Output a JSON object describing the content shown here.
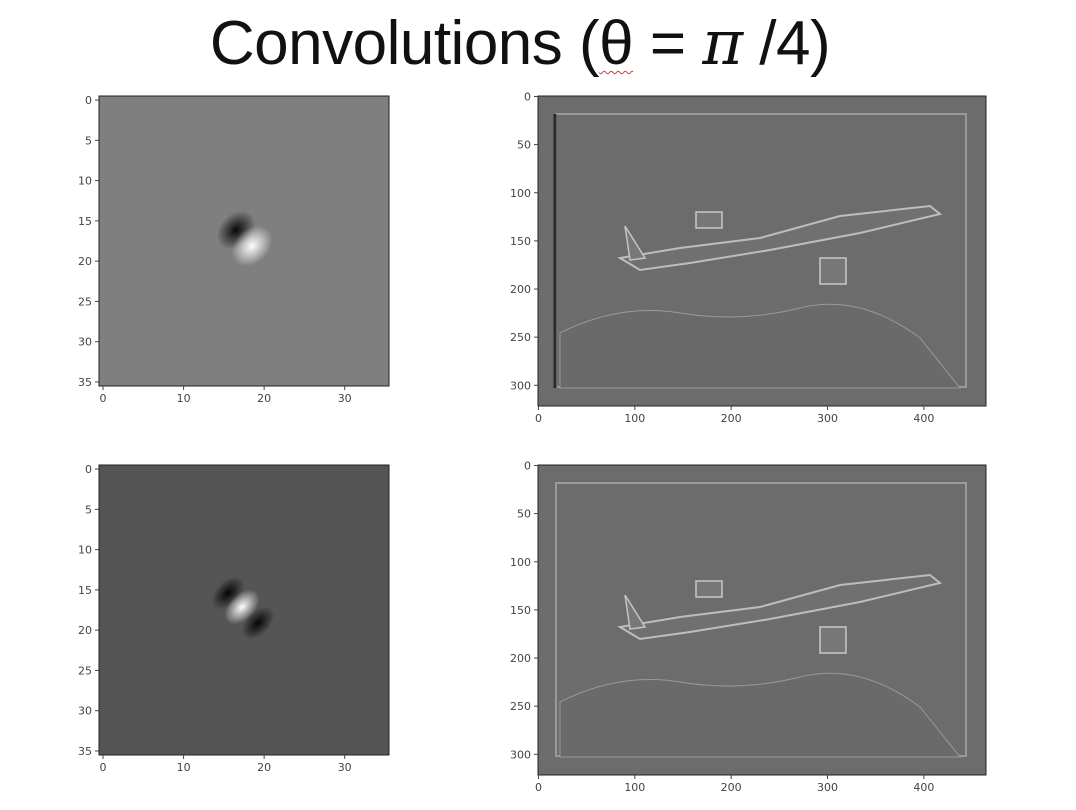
{
  "title": {
    "prefix": "Convolutions (",
    "theta": "θ",
    "equals": " = ",
    "pi": "π",
    "suffix": " /4)"
  },
  "panels": [
    {
      "id": "kernel-top",
      "x_ticks": [
        "0",
        "10",
        "20",
        "30"
      ],
      "y_ticks": [
        "0",
        "5",
        "10",
        "15",
        "20",
        "25",
        "30",
        "35"
      ]
    },
    {
      "id": "image-top",
      "x_ticks": [
        "0",
        "100",
        "200",
        "300",
        "400"
      ],
      "y_ticks": [
        "0",
        "50",
        "100",
        "150",
        "200",
        "250",
        "300"
      ]
    },
    {
      "id": "kernel-bottom",
      "x_ticks": [
        "0",
        "10",
        "20",
        "30"
      ],
      "y_ticks": [
        "0",
        "5",
        "10",
        "15",
        "20",
        "25",
        "30",
        "35"
      ]
    },
    {
      "id": "image-bottom",
      "x_ticks": [
        "0",
        "100",
        "200",
        "300",
        "400"
      ],
      "y_ticks": [
        "0",
        "50",
        "100",
        "150",
        "200",
        "250",
        "300"
      ]
    }
  ],
  "colors": {
    "kernel_top_bg": "#7f7f7f",
    "kernel_bottom_bg": "#555555",
    "image_bg": "#6c6c6c"
  }
}
